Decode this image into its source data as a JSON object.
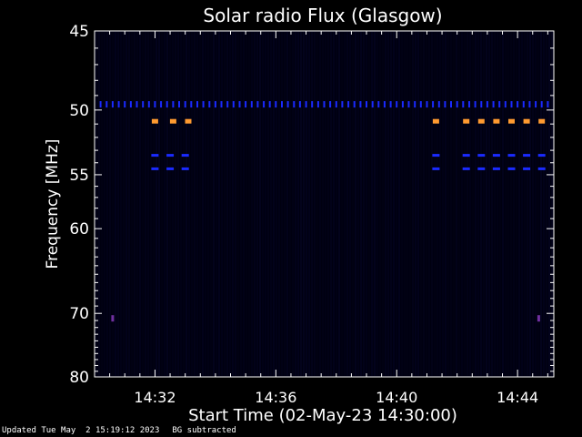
{
  "chart_data": {
    "type": "heatmap",
    "title": "Solar radio Flux (Glasgow)",
    "xlabel": "Start Time (02-May-23 14:30:00)",
    "ylabel": "Frequency [MHz]",
    "x_unit": "minutes after 14:30:00",
    "xlim": [
      0.0,
      15.2
    ],
    "ylim_reciprocal": [
      45,
      80
    ],
    "y_scale": "reciprocal",
    "x_ticks": [
      {
        "value": 2,
        "label": "14:32"
      },
      {
        "value": 6,
        "label": "14:36"
      },
      {
        "value": 10,
        "label": "14:40"
      },
      {
        "value": 14,
        "label": "14:44"
      }
    ],
    "y_ticks": [
      {
        "value": 45,
        "label": "45"
      },
      {
        "value": 50,
        "label": "50"
      },
      {
        "value": 55,
        "label": "55"
      },
      {
        "value": 60,
        "label": "60"
      },
      {
        "value": 70,
        "label": "70"
      },
      {
        "value": 80,
        "label": "80"
      }
    ],
    "grid": false,
    "colormap": [
      "#000010",
      "#0a0a40",
      "#1a2aff",
      "#7030a0",
      "#ff9a30"
    ],
    "rfi_features": [
      {
        "freq_mhz": 50.8,
        "level": "orange",
        "times": [
          2.0,
          2.6,
          3.1,
          11.3,
          12.3,
          12.8,
          13.3,
          13.8,
          14.3,
          14.8
        ]
      },
      {
        "freq_mhz": 49.6,
        "level": "blue",
        "times": [
          0.2,
          0.4,
          0.6,
          0.8,
          1.0,
          1.2,
          1.4,
          1.6,
          1.8,
          2.0,
          2.2,
          2.4,
          2.6,
          2.8,
          3.0,
          3.2,
          3.4,
          3.6,
          3.8,
          4.0,
          4.2,
          4.4,
          4.6,
          4.8,
          5.0,
          5.2,
          5.4,
          5.6,
          5.8,
          6.0,
          6.2,
          6.4,
          6.6,
          6.8,
          7.0,
          7.2,
          7.4,
          7.6,
          7.8,
          8.0,
          8.2,
          8.4,
          8.6,
          8.8,
          9.0,
          9.2,
          9.4,
          9.6,
          9.8,
          10.0,
          10.2,
          10.4,
          10.6,
          10.8,
          11.0,
          11.2,
          11.4,
          11.6,
          11.8,
          12.0,
          12.2,
          12.4,
          12.6,
          12.8,
          13.0,
          13.2,
          13.4,
          13.6,
          13.8,
          14.0,
          14.2,
          14.4,
          14.6,
          14.8,
          15.0
        ]
      },
      {
        "freq_mhz": 53.4,
        "level": "blue",
        "times": [
          2.0,
          2.5,
          3.0,
          11.3,
          12.3,
          12.8,
          13.3,
          13.8,
          14.3,
          14.8
        ]
      },
      {
        "freq_mhz": 54.5,
        "level": "blue",
        "times": [
          2.0,
          2.5,
          3.0,
          11.3,
          12.3,
          12.8,
          13.3,
          13.8,
          14.3,
          14.8
        ]
      },
      {
        "freq_mhz": 70.7,
        "level": "purple",
        "times": [
          0.6,
          14.7
        ]
      }
    ]
  },
  "footer": {
    "updated": "Updated Tue May  2 15:19:12 2023",
    "note": "BG subtracted"
  }
}
